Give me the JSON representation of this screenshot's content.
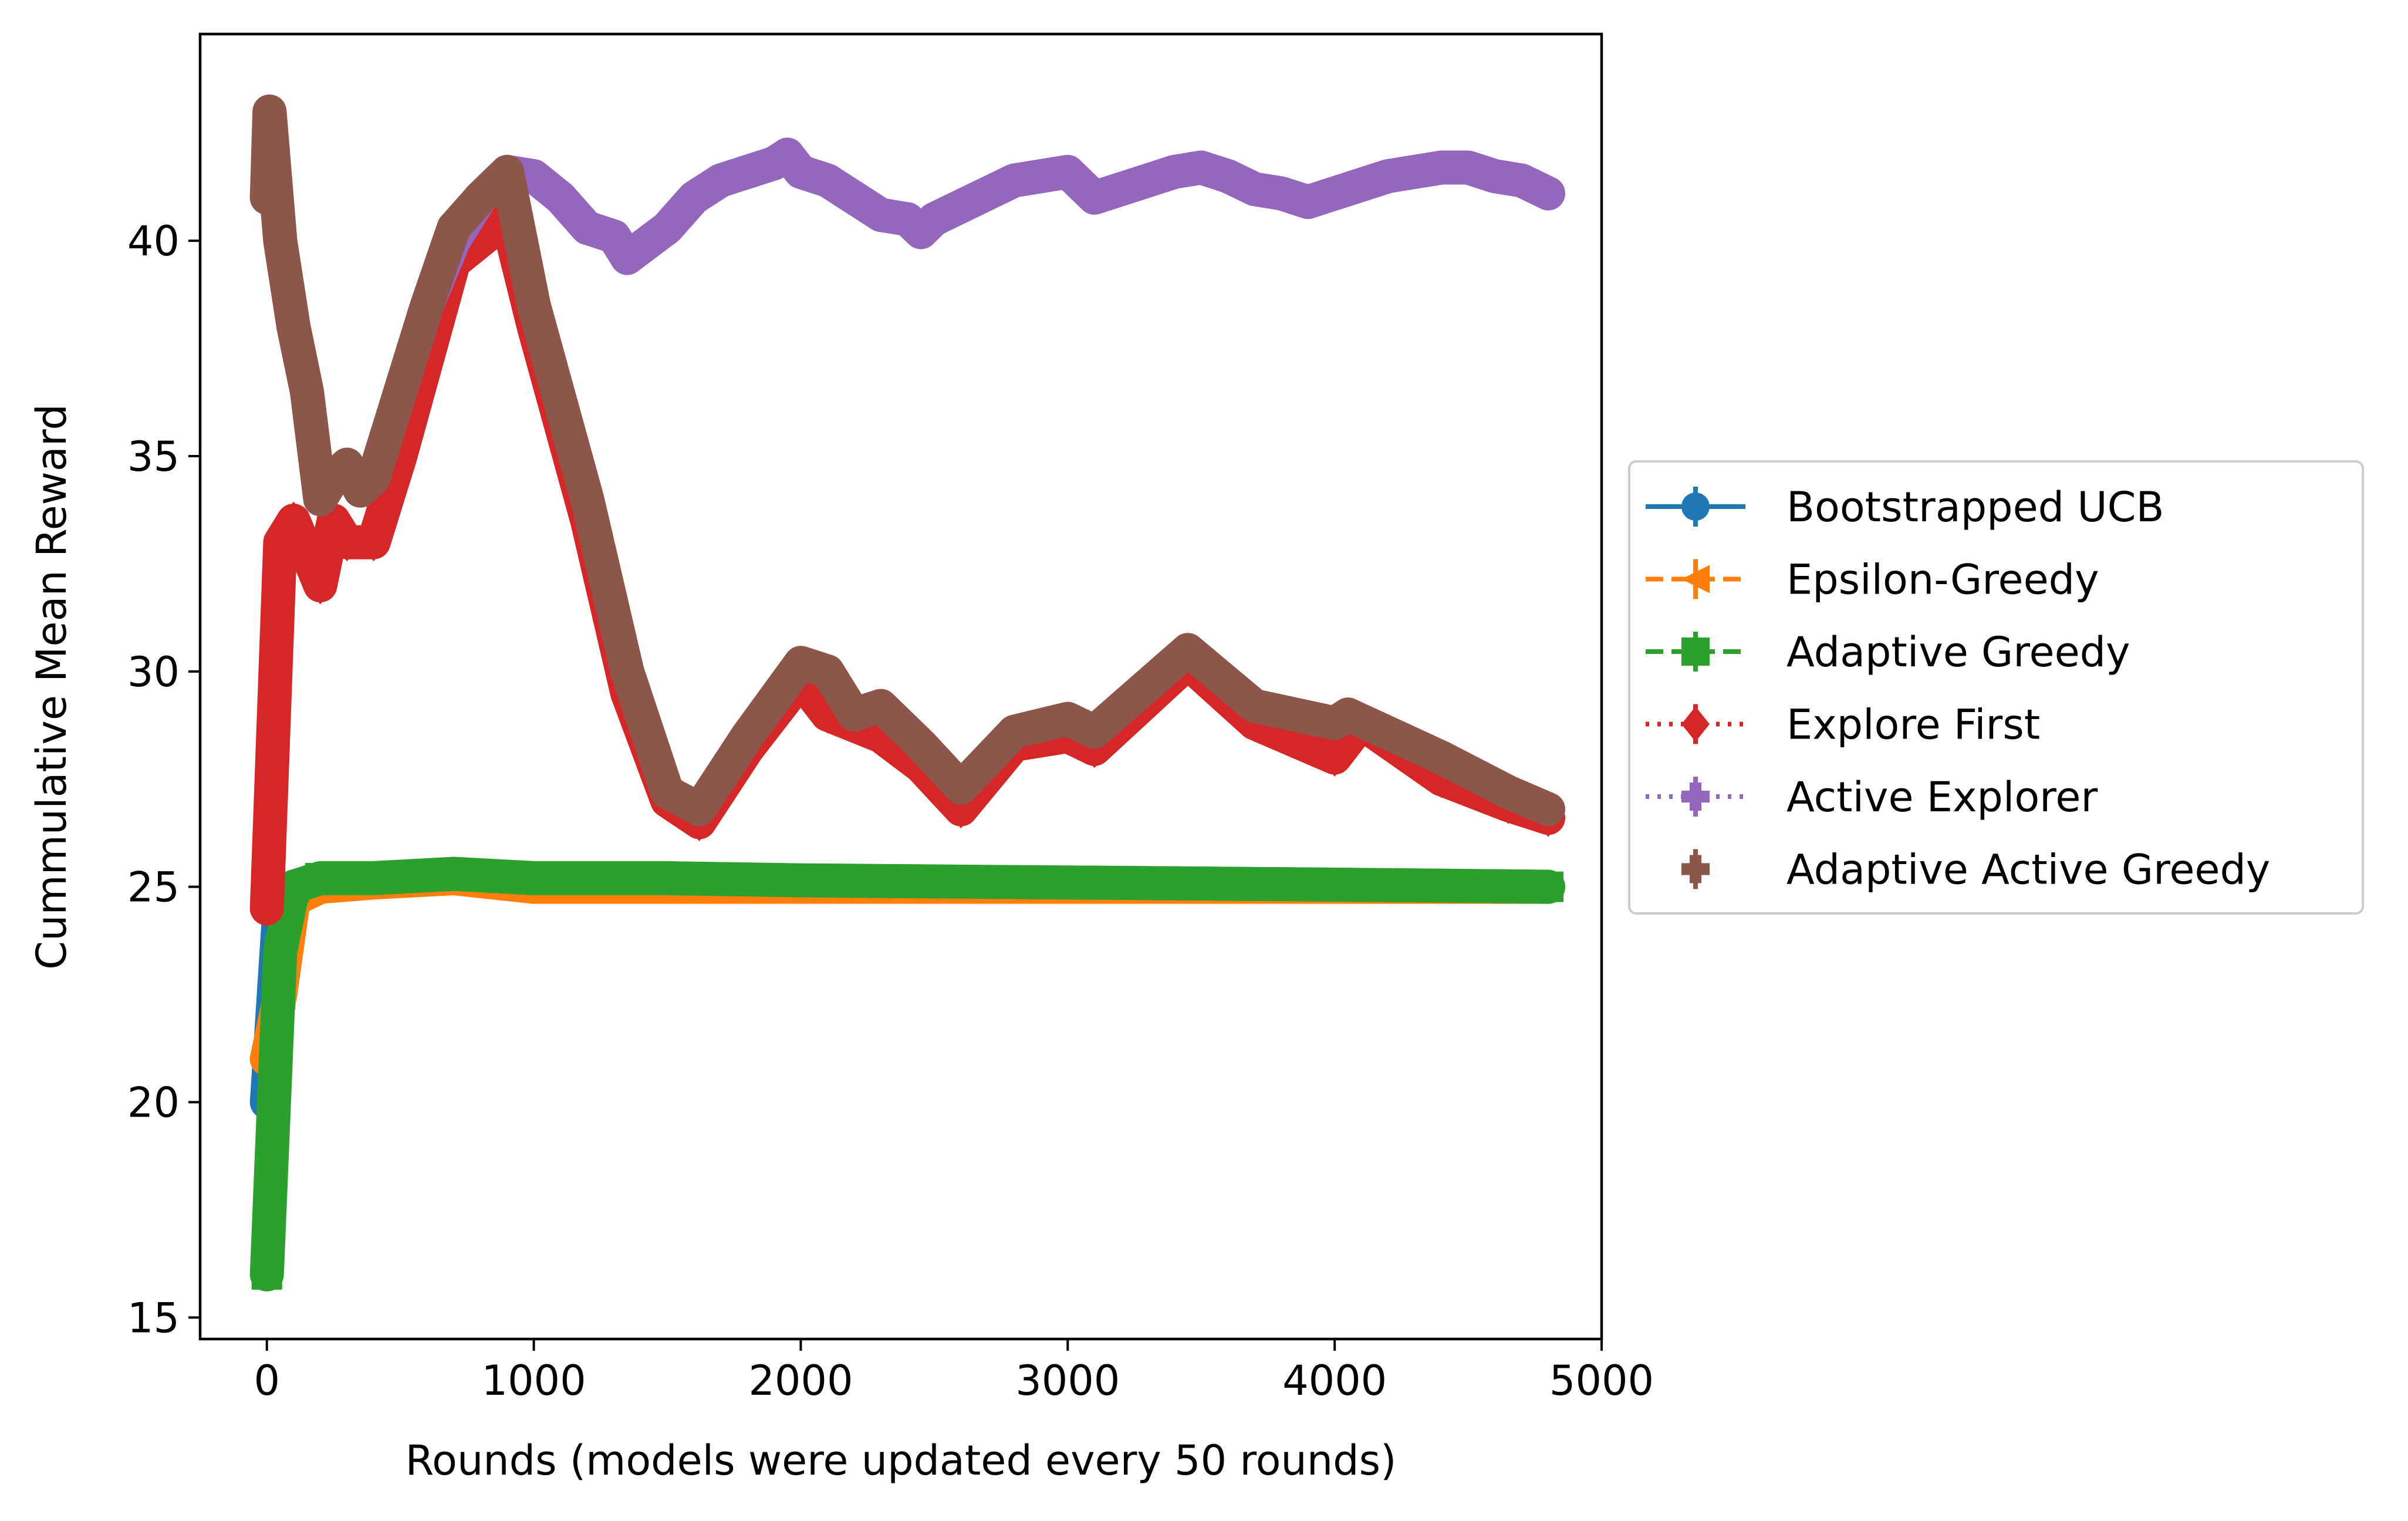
{
  "chart_data": {
    "type": "line",
    "title": "",
    "xlabel": "Rounds (models were updated every 50 rounds)",
    "ylabel": "Cummulative Mean Reward",
    "xlim": [
      -250,
      5000
    ],
    "ylim": [
      14.5,
      44.8
    ],
    "xticks": [
      0,
      1000,
      2000,
      3000,
      4000,
      5000
    ],
    "yticks": [
      15,
      20,
      25,
      30,
      35,
      40
    ],
    "grid": false,
    "legend_position": "center-right outside",
    "series": [
      {
        "name": "Bootstrapped UCB",
        "color": "#1f77b4",
        "marker": "circle",
        "line_style": "solid",
        "x": [
          0,
          50,
          100,
          200,
          400,
          700,
          1000,
          1500,
          2000,
          3000,
          4000,
          4800
        ],
        "y": [
          20,
          24.8,
          25.0,
          25.1,
          25.2,
          25.3,
          25.2,
          25.2,
          25.1,
          25.1,
          25.05,
          25.0
        ]
      },
      {
        "name": "Epsilon-Greedy",
        "color": "#ff7f0e",
        "marker": "triangle-left",
        "line_style": "dashed",
        "x": [
          0,
          50,
          100,
          200,
          400,
          700,
          1000,
          1500,
          2000,
          3000,
          4000,
          4800
        ],
        "y": [
          21,
          22.5,
          24.7,
          25.0,
          25.1,
          25.2,
          25.0,
          25.0,
          25.0,
          25.0,
          25.0,
          25.0
        ]
      },
      {
        "name": "Adaptive Greedy",
        "color": "#2ca02c",
        "marker": "square",
        "line_style": "dashed",
        "x": [
          0,
          50,
          100,
          200,
          400,
          700,
          1000,
          1500,
          2000,
          3000,
          4000,
          4800
        ],
        "y": [
          16,
          23.5,
          25.0,
          25.2,
          25.2,
          25.3,
          25.2,
          25.2,
          25.15,
          25.1,
          25.05,
          25.0
        ]
      },
      {
        "name": "Explore First",
        "color": "#d62728",
        "marker": "diamond",
        "line_style": "dotted",
        "x": [
          0,
          50,
          100,
          200,
          250,
          300,
          400,
          500,
          700,
          900,
          1000,
          1200,
          1350,
          1500,
          1620,
          1800,
          2000,
          2100,
          2300,
          2450,
          2600,
          2800,
          3000,
          3100,
          3450,
          3700,
          4000,
          4100,
          4400,
          4650,
          4800
        ],
        "y": [
          24.5,
          33.0,
          33.5,
          32.0,
          33.5,
          33.0,
          33.0,
          35.0,
          39.5,
          40.5,
          38.0,
          33.5,
          29.5,
          27.0,
          26.5,
          28.2,
          29.8,
          29.0,
          28.5,
          27.8,
          26.8,
          28.3,
          28.5,
          28.2,
          30.2,
          28.8,
          28.0,
          28.8,
          27.5,
          26.9,
          26.6
        ]
      },
      {
        "name": "Active Explorer",
        "color": "#9467bd",
        "marker": "plus-filled",
        "line_style": "dotted",
        "x": [
          0,
          10,
          50,
          100,
          150,
          200,
          250,
          300,
          350,
          400,
          450,
          500,
          600,
          700,
          800,
          900,
          1000,
          1100,
          1200,
          1300,
          1350,
          1500,
          1600,
          1700,
          1800,
          1900,
          1950,
          2000,
          2100,
          2200,
          2300,
          2400,
          2450,
          2500,
          2600,
          2700,
          2800,
          2900,
          3000,
          3100,
          3200,
          3300,
          3400,
          3500,
          3600,
          3700,
          3800,
          3900,
          4000,
          4100,
          4200,
          4300,
          4400,
          4500,
          4600,
          4700,
          4800
        ],
        "y": [
          41.0,
          43.0,
          40.0,
          38.0,
          36.5,
          34.0,
          34.5,
          34.8,
          34.2,
          34.5,
          35.5,
          36.5,
          38.5,
          40.0,
          41.0,
          41.6,
          41.5,
          41.0,
          40.3,
          40.1,
          39.6,
          40.3,
          41.0,
          41.4,
          41.6,
          41.8,
          42.0,
          41.6,
          41.4,
          41.0,
          40.6,
          40.5,
          40.2,
          40.5,
          40.8,
          41.1,
          41.4,
          41.5,
          41.6,
          41.0,
          41.2,
          41.4,
          41.6,
          41.7,
          41.5,
          41.2,
          41.1,
          40.9,
          41.1,
          41.3,
          41.5,
          41.6,
          41.7,
          41.7,
          41.5,
          41.4,
          41.1
        ]
      },
      {
        "name": "Adaptive Active Greedy",
        "color": "#8c564b",
        "marker": "plus-filled",
        "line_style": "none",
        "x": [
          0,
          10,
          50,
          100,
          150,
          200,
          250,
          300,
          350,
          400,
          450,
          500,
          600,
          700,
          800,
          900,
          1000,
          1200,
          1350,
          1500,
          1620,
          1800,
          2000,
          2100,
          2200,
          2300,
          2450,
          2600,
          2800,
          3000,
          3100,
          3450,
          3700,
          4000,
          4050,
          4400,
          4650,
          4800
        ],
        "y": [
          41.0,
          43.0,
          40.0,
          38.0,
          36.5,
          34.0,
          34.5,
          34.8,
          34.2,
          34.5,
          35.5,
          36.5,
          38.5,
          40.3,
          41.0,
          41.6,
          38.5,
          34.0,
          30.0,
          27.2,
          26.8,
          28.5,
          30.2,
          30.0,
          29.0,
          29.2,
          28.3,
          27.3,
          28.6,
          28.9,
          28.6,
          30.5,
          29.2,
          28.8,
          29.0,
          28.0,
          27.2,
          26.8
        ]
      }
    ]
  }
}
